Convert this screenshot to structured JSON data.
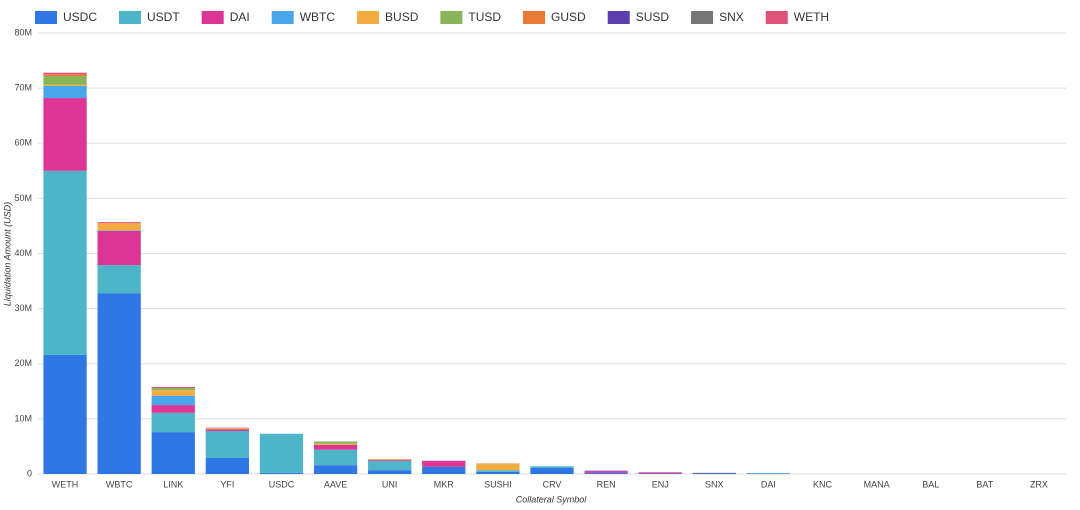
{
  "chart_data": {
    "type": "stacked_bar",
    "y_axis_title": "Liquidation Amount (USD)",
    "x_axis_title": "Collateral Symbol",
    "categories": [
      "WETH",
      "WBTC",
      "LINK",
      "YFI",
      "USDC",
      "AAVE",
      "UNI",
      "MKR",
      "SUSHI",
      "CRV",
      "REN",
      "ENJ",
      "SNX",
      "DAI",
      "KNC",
      "MANA",
      "BAL",
      "BAT",
      "ZRX"
    ],
    "series": [
      {
        "name": "USDC",
        "color": "#2f77e4",
        "values": [
          21.6,
          32.8,
          7.6,
          2.9,
          0.2,
          1.6,
          0.7,
          1.3,
          0.4,
          1.1,
          0.2,
          0.1,
          0.1,
          0.1,
          0,
          0,
          0,
          0,
          0
        ]
      },
      {
        "name": "USDT",
        "color": "#4db5c7",
        "values": [
          33.4,
          5.1,
          3.5,
          4.9,
          7.1,
          2.8,
          1.7,
          0,
          0.3,
          0.3,
          0,
          0,
          0,
          0.05,
          0,
          0,
          0,
          0,
          0
        ]
      },
      {
        "name": "DAI",
        "color": "#dc3595",
        "values": [
          13.2,
          6.2,
          1.4,
          0.3,
          0,
          0.9,
          0.2,
          1.1,
          0,
          0,
          0.3,
          0.2,
          0,
          0,
          0,
          0,
          0,
          0,
          0
        ]
      },
      {
        "name": "WBTC",
        "color": "#49a6ea",
        "values": [
          2.2,
          0.1,
          1.7,
          0,
          0,
          0,
          0,
          0,
          0,
          0,
          0,
          0,
          0,
          0,
          0,
          0,
          0,
          0,
          0
        ]
      },
      {
        "name": "BUSD",
        "color": "#f3ac3f",
        "values": [
          0.2,
          1.3,
          1.0,
          0.2,
          0,
          0.2,
          0.1,
          0,
          1.1,
          0,
          0,
          0,
          0,
          0,
          0,
          0,
          0,
          0,
          0
        ]
      },
      {
        "name": "TUSD",
        "color": "#8ab458",
        "values": [
          1.6,
          0,
          0.4,
          0,
          0,
          0.4,
          0,
          0,
          0,
          0,
          0,
          0,
          0,
          0,
          0,
          0,
          0,
          0,
          0
        ]
      },
      {
        "name": "GUSD",
        "color": "#e97a35",
        "values": [
          0.3,
          0,
          0,
          0,
          0,
          0,
          0,
          0,
          0.1,
          0,
          0,
          0,
          0,
          0,
          0,
          0,
          0,
          0,
          0
        ]
      },
      {
        "name": "SUSD",
        "color": "#5b3fae",
        "values": [
          0,
          0,
          0,
          0,
          0,
          0,
          0,
          0,
          0,
          0,
          0.1,
          0,
          0.1,
          0,
          0,
          0,
          0,
          0,
          0
        ]
      },
      {
        "name": "SNX",
        "color": "#757575",
        "values": [
          0,
          0,
          0,
          0,
          0,
          0,
          0,
          0,
          0,
          0,
          0,
          0,
          0,
          0,
          0,
          0,
          0,
          0,
          0
        ]
      },
      {
        "name": "WETH",
        "color": "#e0527a",
        "values": [
          0.3,
          0.2,
          0.2,
          0.1,
          0,
          0,
          0,
          0,
          0,
          0,
          0,
          0,
          0,
          0,
          0,
          0,
          0,
          0,
          0
        ]
      }
    ],
    "ylim": [
      0,
      80
    ],
    "yticks": [
      {
        "value": 0,
        "label": "0"
      },
      {
        "value": 10,
        "label": "10M"
      },
      {
        "value": 20,
        "label": "20M"
      },
      {
        "value": 30,
        "label": "30M"
      },
      {
        "value": 40,
        "label": "40M"
      },
      {
        "value": 50,
        "label": "50M"
      },
      {
        "value": 60,
        "label": "60M"
      },
      {
        "value": 70,
        "label": "70M"
      },
      {
        "value": 80,
        "label": "80M"
      }
    ],
    "grid": true,
    "legend": "top"
  }
}
